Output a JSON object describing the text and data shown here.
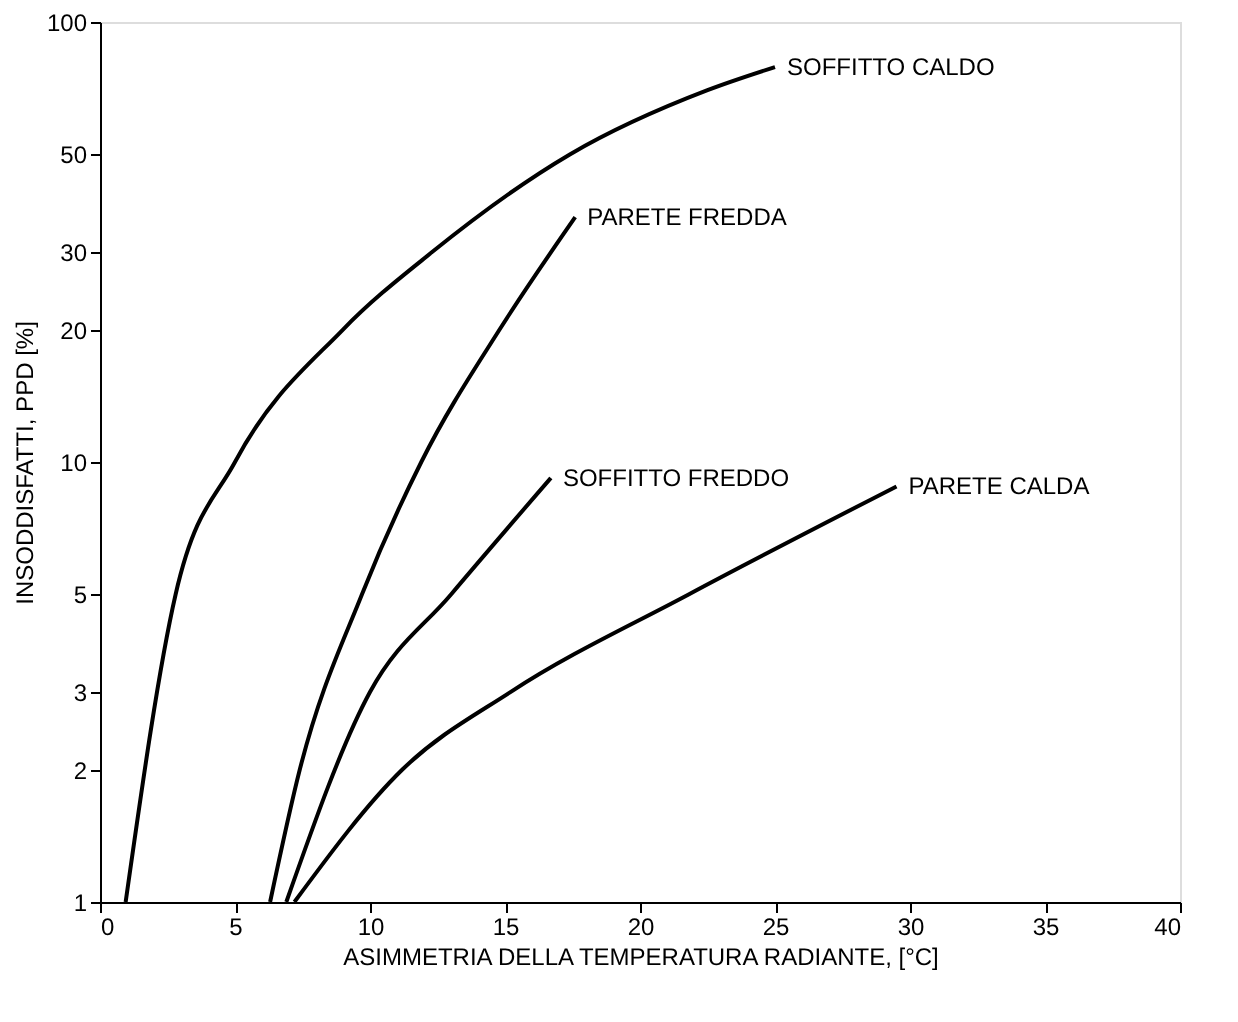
{
  "chart_data": {
    "type": "line",
    "xlabel": "ASIMMETRIA DELLA TEMPERATURA RADIANTE, [°C]",
    "ylabel": "INSODDISFATTI, PPD [%]",
    "log": "y",
    "xlim": [
      0,
      40
    ],
    "ylim": [
      1,
      100
    ],
    "xticks": [
      0,
      5,
      10,
      15,
      20,
      25,
      30,
      35,
      40
    ],
    "yticks": [
      1,
      2,
      3,
      5,
      10,
      20,
      30,
      50,
      100
    ],
    "grid": false,
    "marker": "none",
    "line_style": "solid",
    "series": [
      {
        "name": "SOFFITTO CALDO",
        "color": "#000000",
        "x": [
          0.95,
          2.8,
          5,
          9,
          12.3,
          17.4,
          22.5,
          25
        ],
        "values": [
          1,
          5,
          10,
          20,
          30,
          50,
          70,
          79
        ]
      },
      {
        "name": "PARETE FREDDA",
        "color": "#000000",
        "x": [
          6.3,
          7.4,
          9.7,
          11.9,
          14.8,
          17.6
        ],
        "values": [
          1,
          2,
          5,
          10,
          20,
          36
        ]
      },
      {
        "name": "SOFFITTO FREDDO",
        "color": "#000000",
        "x": [
          6.9,
          10,
          13,
          16.7
        ],
        "values": [
          1,
          3,
          5,
          9.2
        ]
      },
      {
        "name": "PARETE CALDA",
        "color": "#000000",
        "x": [
          7.2,
          11.2,
          15.2,
          21.8,
          29.5
        ],
        "values": [
          1,
          2,
          3,
          5,
          8.8
        ]
      }
    ]
  }
}
